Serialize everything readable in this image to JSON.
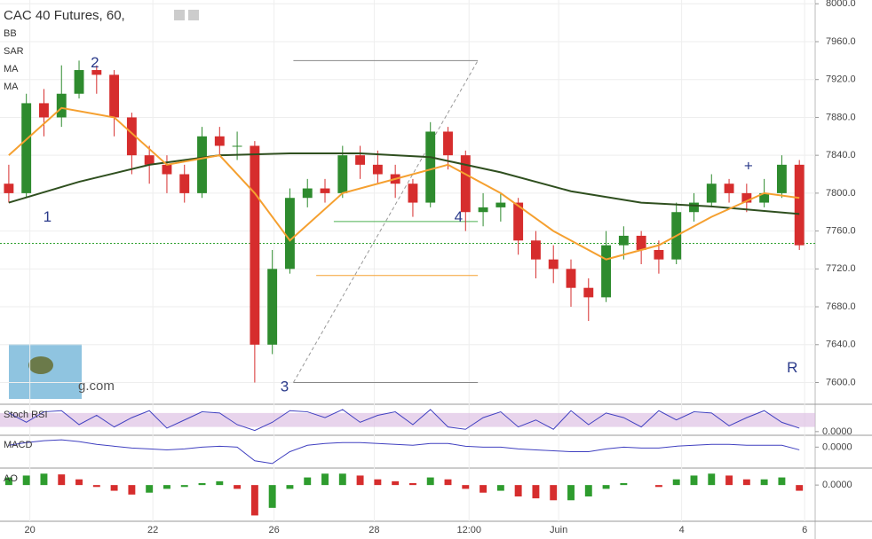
{
  "chart_data": [
    {
      "type": "candlestick",
      "title": "CAC 40 Futures, 60,",
      "indicators": [
        "BB",
        "SAR",
        "MA",
        "MA"
      ],
      "watermark": "g.com",
      "x": [
        0,
        1,
        2,
        3,
        4,
        5,
        6,
        7,
        8,
        9,
        10,
        11,
        12,
        13,
        14,
        15,
        16,
        17,
        18,
        19,
        20,
        21,
        22,
        23,
        24,
        25,
        26,
        27,
        28,
        29,
        30,
        31,
        32,
        33,
        34,
        35,
        36,
        37,
        38,
        39,
        40,
        41,
        42,
        43,
        44,
        45
      ],
      "open": [
        7810,
        7800,
        7895,
        7880,
        7905,
        7930,
        7925,
        7880,
        7840,
        7830,
        7820,
        7800,
        7860,
        7850,
        7850,
        7640,
        7720,
        7795,
        7805,
        7800,
        7840,
        7830,
        7820,
        7810,
        7790,
        7865,
        7840,
        7780,
        7785,
        7790,
        7750,
        7730,
        7720,
        7700,
        7690,
        7745,
        7755,
        7740,
        7730,
        7780,
        7790,
        7810,
        7800,
        7790,
        7800,
        7830
      ],
      "high": [
        7830,
        7905,
        7910,
        7935,
        7940,
        7935,
        7930,
        7885,
        7850,
        7840,
        7830,
        7870,
        7870,
        7865,
        7855,
        7740,
        7805,
        7815,
        7815,
        7850,
        7850,
        7845,
        7830,
        7815,
        7875,
        7870,
        7845,
        7800,
        7800,
        7795,
        7760,
        7745,
        7730,
        7710,
        7760,
        7765,
        7760,
        7750,
        7790,
        7800,
        7820,
        7815,
        7810,
        7815,
        7840,
        7835
      ],
      "low": [
        7790,
        7795,
        7860,
        7870,
        7900,
        7905,
        7860,
        7820,
        7810,
        7800,
        7790,
        7795,
        7840,
        7835,
        7600,
        7630,
        7715,
        7785,
        7790,
        7795,
        7815,
        7810,
        7795,
        7775,
        7785,
        7825,
        7760,
        7765,
        7770,
        7735,
        7710,
        7705,
        7680,
        7665,
        7685,
        7730,
        7725,
        7715,
        7725,
        7770,
        7785,
        7790,
        7780,
        7785,
        7795,
        7740
      ],
      "close": [
        7800,
        7895,
        7880,
        7905,
        7930,
        7925,
        7880,
        7840,
        7830,
        7820,
        7800,
        7860,
        7850,
        7850,
        7640,
        7720,
        7795,
        7805,
        7800,
        7840,
        7830,
        7820,
        7810,
        7790,
        7865,
        7840,
        7780,
        7785,
        7790,
        7750,
        7730,
        7720,
        7700,
        7690,
        7745,
        7755,
        7740,
        7730,
        7780,
        7790,
        7810,
        7800,
        7790,
        7800,
        7830,
        7745
      ],
      "up_color": "#2e8b2e",
      "down_color": "#d62d2d",
      "series": [
        {
          "color": "#2f4f1f",
          "x": [
            0,
            4,
            8,
            12,
            16,
            20,
            24,
            28,
            32,
            36,
            40,
            45
          ],
          "values": [
            7790,
            7812,
            7830,
            7840,
            7842,
            7842,
            7838,
            7822,
            7802,
            7790,
            7786,
            7778
          ]
        },
        {
          "color": "#f5a030",
          "x": [
            0,
            3,
            6,
            9,
            12,
            14,
            16,
            19,
            22,
            25,
            28,
            31,
            34,
            37,
            40,
            43,
            45
          ],
          "values": [
            7840,
            7890,
            7880,
            7830,
            7840,
            7800,
            7750,
            7800,
            7815,
            7830,
            7800,
            7760,
            7730,
            7745,
            7775,
            7800,
            7795
          ]
        }
      ],
      "levels": [
        {
          "color": "#888888",
          "x": [
            16.2,
            26.7
          ],
          "value": 7940
        },
        {
          "color": "#4caf50",
          "x": [
            18.5,
            26.7
          ],
          "value": 7770
        },
        {
          "color": "#f5a030",
          "x": [
            17.5,
            26.7
          ],
          "value": 7713
        },
        {
          "color": "#888888",
          "x": [
            16.2,
            26.7
          ],
          "value": 7600
        }
      ],
      "trendline": {
        "x": [
          16.2,
          26.7
        ],
        "y": [
          7600,
          7940
        ]
      },
      "last_price": 7747,
      "annotations": [
        {
          "text": "1",
          "x": 2.2,
          "y": 7774
        },
        {
          "text": "2",
          "x": 4.9,
          "y": 7937
        },
        {
          "text": "3",
          "x": 15.7,
          "y": 7595
        },
        {
          "text": "4",
          "x": 25.6,
          "y": 7774
        },
        {
          "text": "+",
          "x": 42.1,
          "y": 7828
        },
        {
          "text": "R",
          "x": 44.6,
          "y": 7615
        }
      ],
      "xlim": [
        -0.5,
        45.9
      ],
      "ylim": [
        7578,
        8004
      ],
      "yticks": [
        {
          "value": 8000,
          "label": "8000.0"
        },
        {
          "value": 7960,
          "label": "7960.0"
        },
        {
          "value": 7920,
          "label": "7920.0"
        },
        {
          "value": 7880,
          "label": "7880.0"
        },
        {
          "value": 7840,
          "label": "7840.0"
        },
        {
          "value": 7800,
          "label": "7800.0"
        },
        {
          "value": 7760,
          "label": "7760.0"
        },
        {
          "value": 7720,
          "label": "7720.0"
        },
        {
          "value": 7680,
          "label": "7680.0"
        },
        {
          "value": 7640,
          "label": "7640.0"
        },
        {
          "value": 7600,
          "label": "7600.0"
        }
      ],
      "xticks": [
        {
          "value": 1.2,
          "label": "20"
        },
        {
          "value": 8.2,
          "label": "22"
        },
        {
          "value": 15.1,
          "label": "26"
        },
        {
          "value": 20.8,
          "label": "28"
        },
        {
          "value": 26.2,
          "label": "12:00"
        },
        {
          "value": 31.3,
          "label": "Juin"
        },
        {
          "value": 38.3,
          "label": "4"
        },
        {
          "value": 45.3,
          "label": "6"
        }
      ],
      "grid": true
    },
    {
      "type": "line",
      "title": "Stoch RSI",
      "color": "#4040c0",
      "band": [
        20,
        80
      ],
      "values": [
        80,
        40,
        85,
        90,
        30,
        70,
        20,
        60,
        90,
        15,
        50,
        85,
        80,
        30,
        5,
        40,
        90,
        85,
        60,
        95,
        40,
        70,
        85,
        30,
        95,
        20,
        10,
        60,
        85,
        20,
        50,
        10,
        90,
        30,
        80,
        60,
        20,
        90,
        50,
        85,
        80,
        25,
        60,
        90,
        40,
        15
      ],
      "ylim": [
        -12,
        110
      ],
      "yticks": [
        {
          "value": 0,
          "label": "0.0000"
        }
      ]
    },
    {
      "type": "line",
      "title": "MACD",
      "color": "#4040c0",
      "values": [
        2,
        5,
        7,
        8,
        6,
        3,
        1,
        -1,
        -2,
        -3,
        -2,
        0,
        1,
        0,
        -15,
        -18,
        -5,
        2,
        4,
        5,
        5,
        4,
        3,
        2,
        4,
        4,
        1,
        0,
        0,
        -2,
        -3,
        -4,
        -5,
        -5,
        -2,
        0,
        -1,
        -1,
        1,
        2,
        3,
        3,
        2,
        2,
        2,
        -3
      ],
      "ylim": [
        -22,
        12
      ],
      "yticks": [
        {
          "value": 0,
          "label": "0.0000"
        }
      ]
    },
    {
      "type": "bar",
      "title": "AO",
      "up_color": "#2e9c2e",
      "down_color": "#d62d2d",
      "values": [
        20,
        25,
        30,
        28,
        15,
        -5,
        -15,
        -25,
        -20,
        -10,
        -5,
        5,
        10,
        -10,
        -80,
        -60,
        -10,
        20,
        30,
        30,
        25,
        15,
        10,
        5,
        20,
        15,
        -10,
        -20,
        -15,
        -30,
        -35,
        -40,
        -40,
        -30,
        -10,
        5,
        0,
        -5,
        15,
        25,
        30,
        25,
        15,
        15,
        20,
        -15
      ],
      "ylim": [
        -100,
        40
      ],
      "yticks": [
        {
          "value": 0,
          "label": "0.0000"
        }
      ]
    }
  ]
}
